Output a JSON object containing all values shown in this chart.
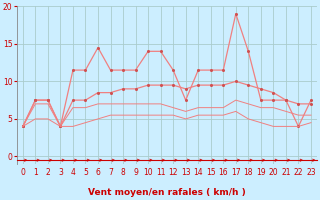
{
  "x": [
    0,
    1,
    2,
    3,
    4,
    5,
    6,
    7,
    8,
    9,
    10,
    11,
    12,
    13,
    14,
    15,
    16,
    17,
    18,
    19,
    20,
    21,
    22,
    23
  ],
  "rafales": [
    4,
    7.5,
    7.5,
    4,
    11.5,
    11.5,
    14.5,
    11.5,
    11.5,
    11.5,
    14,
    14,
    11.5,
    7.5,
    11.5,
    11.5,
    11.5,
    19,
    14,
    7.5,
    7.5,
    7.5,
    4,
    7.5
  ],
  "mean_high": [
    4,
    7.5,
    7.5,
    4,
    7.5,
    7.5,
    8.5,
    8.5,
    9.0,
    9.0,
    9.5,
    9.5,
    9.5,
    9.0,
    9.5,
    9.5,
    9.5,
    10,
    9.5,
    9.0,
    8.5,
    7.5,
    7.0,
    7.0
  ],
  "mean_low": [
    4,
    7.0,
    7.0,
    4,
    6.5,
    6.5,
    7.0,
    7.0,
    7.0,
    7.0,
    7.0,
    7.0,
    6.5,
    6.0,
    6.5,
    6.5,
    6.5,
    7.5,
    7.0,
    6.5,
    6.5,
    6.0,
    5.5,
    5.5
  ],
  "min_vals": [
    4,
    5.0,
    5.0,
    4,
    4.0,
    4.5,
    5.0,
    5.5,
    5.5,
    5.5,
    5.5,
    5.5,
    5.5,
    5.0,
    5.5,
    5.5,
    5.5,
    6.0,
    5.0,
    4.5,
    4.0,
    4.0,
    4.0,
    4.5
  ],
  "line_color": "#f08080",
  "marker_color": "#d05050",
  "bg_color": "#cceeff",
  "grid_color": "#aacccc",
  "xlabel": "Vent moyen/en rafales ( km/h )",
  "xlabel_color": "#cc0000",
  "tick_color": "#cc0000",
  "ylim": [
    -1,
    20
  ],
  "xlim": [
    -0.5,
    23.5
  ],
  "yticks": [
    0,
    5,
    10,
    15,
    20
  ],
  "xticks": [
    0,
    1,
    2,
    3,
    4,
    5,
    6,
    7,
    8,
    9,
    10,
    11,
    12,
    13,
    14,
    15,
    16,
    17,
    18,
    19,
    20,
    21,
    22,
    23
  ]
}
